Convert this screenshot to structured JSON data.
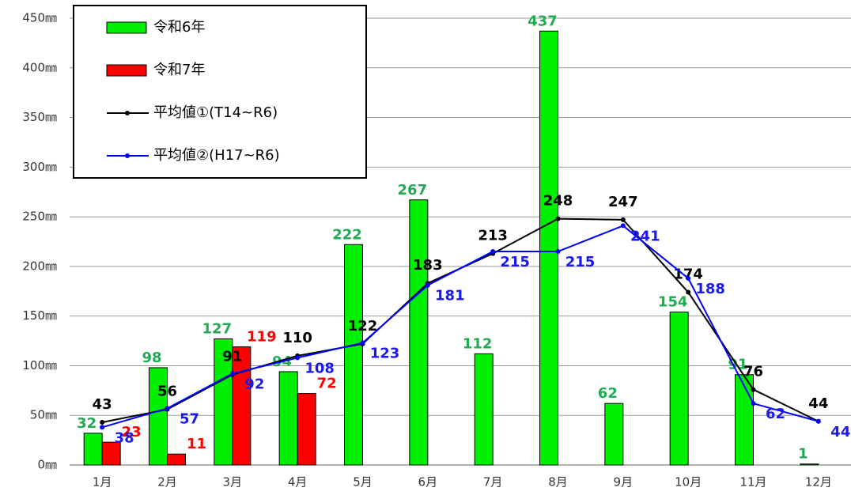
{
  "chart_data": {
    "type": "bar+line",
    "categories": [
      "1月",
      "2月",
      "3月",
      "4月",
      "5月",
      "6月",
      "7月",
      "8月",
      "9月",
      "10月",
      "11月",
      "12月"
    ],
    "series": [
      {
        "name": "令和6年",
        "type": "bar",
        "color": "#00ee00",
        "label_color": "#22aa55",
        "values": [
          32,
          98,
          127,
          94,
          222,
          267,
          112,
          437,
          62,
          154,
          91,
          1
        ]
      },
      {
        "name": "令和7年",
        "type": "bar",
        "color": "#ff0000",
        "label_color": "#ff0000",
        "values": [
          23,
          11,
          119,
          72,
          null,
          null,
          null,
          null,
          null,
          null,
          null,
          null
        ]
      },
      {
        "name": "平均値①(T14~R6)",
        "type": "line",
        "color": "#000000",
        "label_color": "#000000",
        "values": [
          43,
          56,
          91,
          110,
          122,
          183,
          213,
          248,
          247,
          174,
          76,
          44
        ]
      },
      {
        "name": "平均値②(H17~R6)",
        "type": "line",
        "color": "#0000ff",
        "label_color": "#1a1aee",
        "values": [
          38,
          57,
          92,
          108,
          123,
          181,
          215,
          215,
          241,
          188,
          62,
          44
        ]
      }
    ],
    "ylim": [
      0,
      450
    ],
    "yticks": [
      {
        "value": 0,
        "label": "0㎜"
      },
      {
        "value": 50,
        "label": "50㎜"
      },
      {
        "value": 100,
        "label": "100㎜"
      },
      {
        "value": 150,
        "label": "150㎜"
      },
      {
        "value": 200,
        "label": "200㎜"
      },
      {
        "value": 250,
        "label": "250㎜"
      },
      {
        "value": 300,
        "label": "300㎜"
      },
      {
        "value": 350,
        "label": "350㎜"
      },
      {
        "value": 400,
        "label": "400㎜"
      },
      {
        "value": 450,
        "label": "450㎜"
      }
    ],
    "grid": true
  }
}
